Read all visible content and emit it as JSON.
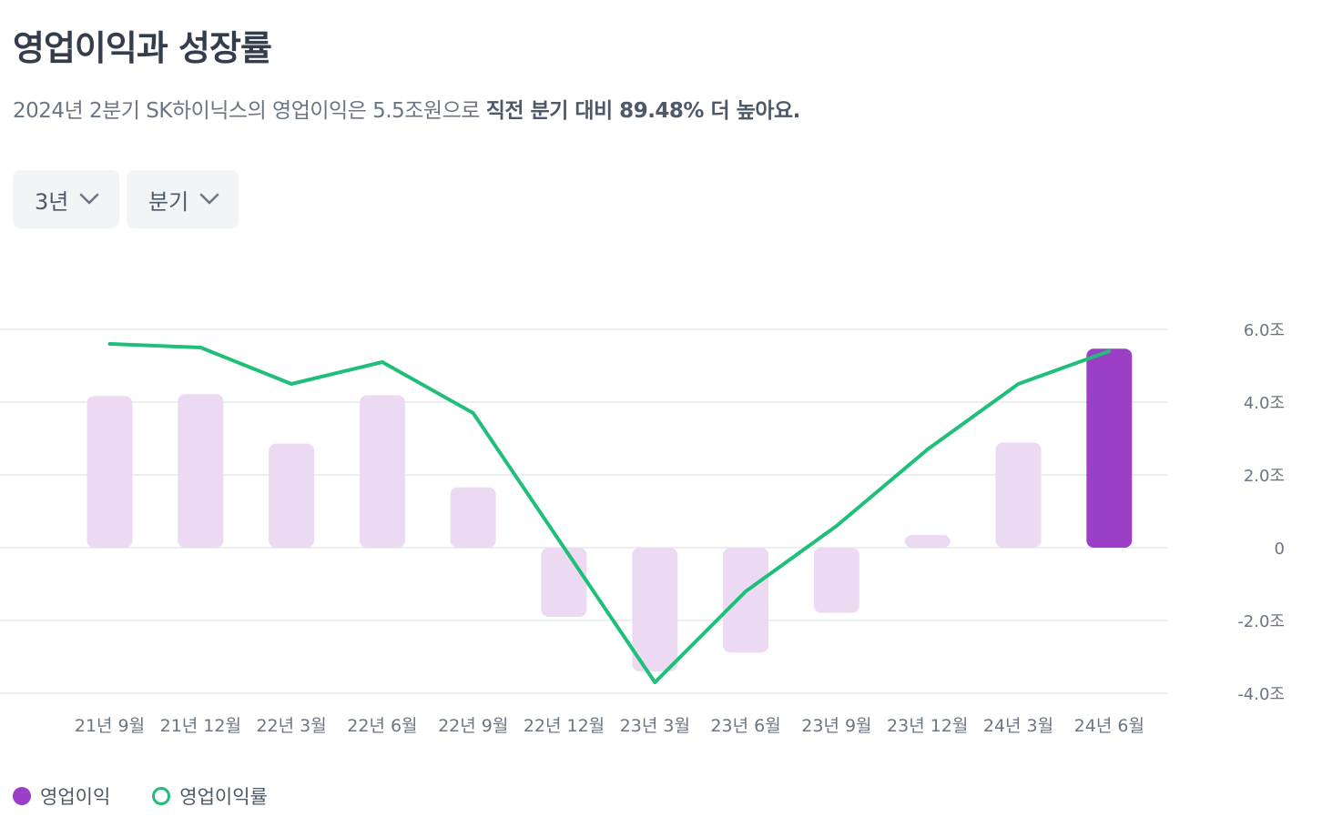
{
  "header": {
    "title": "영업이익과 성장률",
    "subtitle_plain": "2024년 2분기 SK하이닉스의 영업이익은 5.5조원으로 ",
    "subtitle_bold": "직전 분기 대비 89.48% 더 높아요."
  },
  "controls": {
    "period_label": "3년",
    "interval_label": "분기"
  },
  "colors": {
    "bar": "#9b3fc6",
    "bar_faded": "#ecdaf3",
    "line": "#1fbf7a",
    "grid": "#e5e8eb",
    "axis_text": "#6b7684"
  },
  "chart_data": {
    "type": "bar",
    "categories": [
      "21년 9월",
      "21년 12월",
      "22년 3월",
      "22년 6월",
      "22년 9월",
      "22년 12월",
      "23년 3월",
      "23년 6월",
      "23년 9월",
      "23년 12월",
      "24년 3월",
      "24년 6월"
    ],
    "series": [
      {
        "name": "영업이익",
        "type": "bar",
        "values": [
          4.17,
          4.22,
          2.86,
          4.19,
          1.66,
          -1.9,
          -3.4,
          -2.88,
          -1.79,
          0.35,
          2.89,
          5.47
        ],
        "highlight_index": 11
      },
      {
        "name": "영업이익률",
        "type": "line",
        "values": [
          5.6,
          5.5,
          4.5,
          5.1,
          3.7,
          0.0,
          -3.7,
          -1.2,
          0.6,
          2.7,
          4.5,
          5.4
        ]
      }
    ],
    "y_ticks": [
      6.0,
      4.0,
      2.0,
      0,
      -2.0,
      -4.0
    ],
    "y_tick_labels": [
      "6.0조",
      "4.0조",
      "2.0조",
      "0",
      "-2.0조",
      "-4.0조"
    ],
    "ylim": [
      -4.0,
      6.0
    ],
    "grid": true,
    "y_axis_position": "right",
    "legend_position": "bottom-left"
  },
  "legend": [
    {
      "label": "영업이익",
      "style": "filled-circle"
    },
    {
      "label": "영업이익률",
      "style": "ring"
    }
  ]
}
